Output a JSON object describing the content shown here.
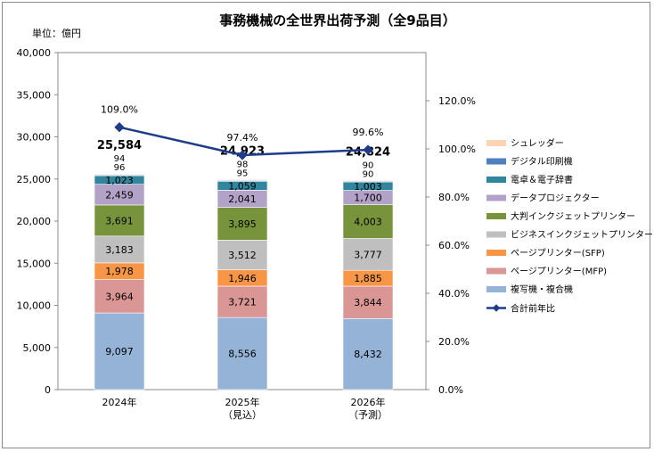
{
  "chart_data": {
    "type": "bar",
    "title": "事務機械の全世界出荷予測（全9品目）",
    "unit_label": "単位：億円",
    "categories": [
      [
        "2024年"
      ],
      [
        "2025年",
        "（見込）"
      ],
      [
        "2026年",
        "（予測）"
      ]
    ],
    "stacked": true,
    "y_left": {
      "min": 0,
      "max": 40000,
      "step": 5000,
      "ticks": [
        "0",
        "5,000",
        "10,000",
        "15,000",
        "20,000",
        "25,000",
        "30,000",
        "35,000",
        "40,000"
      ]
    },
    "y_right": {
      "min": 0,
      "max": 140,
      "step": 20,
      "ticks": [
        "0.0%",
        "20.0%",
        "40.0%",
        "60.0%",
        "80.0%",
        "100.0%",
        "120.0%"
      ]
    },
    "series": [
      {
        "name": "複写機・複合機",
        "color": "#95b3d7",
        "values": [
          9097,
          8556,
          8432
        ],
        "labels": [
          "9,097",
          "8,556",
          "8,432"
        ]
      },
      {
        "name": "ページプリンター(MFP)",
        "color": "#da9694",
        "values": [
          3964,
          3721,
          3844
        ],
        "labels": [
          "3,964",
          "3,721",
          "3,844"
        ]
      },
      {
        "name": "ページプリンター(SFP)",
        "color": "#f79646",
        "values": [
          1978,
          1946,
          1885
        ],
        "labels": [
          "1,978",
          "1,946",
          "1,885"
        ]
      },
      {
        "name": "ビジネスインクジェットプリンター",
        "color": "#bfbfbf",
        "values": [
          3183,
          3512,
          3777
        ],
        "labels": [
          "3,183",
          "3,512",
          "3,777"
        ]
      },
      {
        "name": "大判インクジェットプリンター",
        "color": "#77933c",
        "values": [
          3691,
          3895,
          4003
        ],
        "labels": [
          "3,691",
          "3,895",
          "4,003"
        ]
      },
      {
        "name": "データプロジェクター",
        "color": "#b3a2c7",
        "values": [
          2459,
          2041,
          1700
        ],
        "labels": [
          "2,459",
          "2,041",
          "1,700"
        ]
      },
      {
        "name": "電卓＆電子辞書",
        "color": "#31859c",
        "values": [
          1023,
          1059,
          1003
        ],
        "labels": [
          "1,023",
          "1,059",
          "1,003"
        ]
      },
      {
        "name": "デジタル印刷機",
        "color": "#4f81bd",
        "values": [
          96,
          95,
          90
        ],
        "labels": [
          "96",
          "95",
          "90"
        ]
      },
      {
        "name": "シュレッダー",
        "color": "#fcd5b5",
        "values": [
          94,
          98,
          90
        ],
        "labels": [
          "94",
          "98",
          "90"
        ]
      }
    ],
    "totals": [
      "25,584",
      "24,923",
      "24,824"
    ],
    "line": {
      "name": "合計前年比",
      "color": "#1f3c88",
      "values": [
        109.0,
        97.4,
        99.6
      ],
      "labels": [
        "109.0%",
        "97.4%",
        "99.6%"
      ]
    }
  }
}
